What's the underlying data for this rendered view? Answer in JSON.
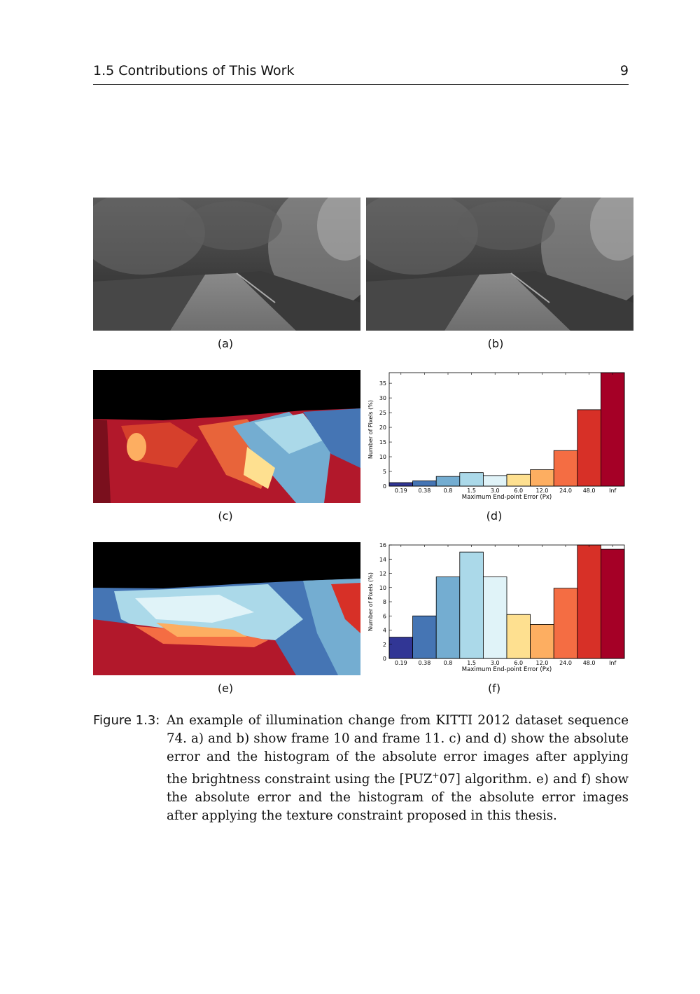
{
  "header": {
    "section": "1.5  Contributions of This Work",
    "page_number": "9"
  },
  "subfigures": {
    "a": "(a)",
    "b": "(b)",
    "c": "(c)",
    "d": "(d)",
    "e": "(e)",
    "f": "(f)"
  },
  "caption": {
    "label": "Figure 1.3:",
    "text_before_sup": "An example of illumination change from KITTI 2012 dataset sequence 74. a) and b) show frame 10 and frame 11. c) and d) show the absolute error and the histogram of the absolute error images after applying the brightness constraint using the [PUZ",
    "sup": "+",
    "text_after_sup": "07] algorithm. e) and f) show the absolute error and the histogram of the absolute error images after applying the texture constraint proposed in this thesis."
  },
  "chart_data": [
    {
      "type": "bar",
      "id": "d",
      "categories": [
        "0.19",
        "0.38",
        "0.8",
        "1.5",
        "3.0",
        "6.0",
        "12.0",
        "24.0",
        "48.0",
        "Inf"
      ],
      "values": [
        1.2,
        1.8,
        3.3,
        4.6,
        3.6,
        4.0,
        5.6,
        12.1,
        26.0,
        38.6
      ],
      "colors": [
        "#313695",
        "#4575b4",
        "#74add1",
        "#abd9e9",
        "#e0f3f8",
        "#fee090",
        "#fdae61",
        "#f46d43",
        "#d73027",
        "#a50026"
      ],
      "xlabel": "Maximum End-point Error (Px)",
      "ylabel": "Number of Pixels (%)",
      "ylim": [
        0,
        38.6
      ],
      "yticks": [
        0,
        5,
        10,
        15,
        20,
        25,
        30,
        35
      ]
    },
    {
      "type": "bar",
      "id": "f",
      "categories": [
        "0.19",
        "0.38",
        "0.8",
        "1.5",
        "3.0",
        "6.0",
        "12.0",
        "24.0",
        "48.0",
        "Inf"
      ],
      "values": [
        3.0,
        6.0,
        11.5,
        15.0,
        11.5,
        6.2,
        4.8,
        9.9,
        16.2,
        15.4
      ],
      "colors": [
        "#313695",
        "#4575b4",
        "#74add1",
        "#abd9e9",
        "#e0f3f8",
        "#fee090",
        "#fdae61",
        "#f46d43",
        "#d73027",
        "#a50026"
      ],
      "xlabel": "Maximum End-point Error (Px)",
      "ylabel": "Number of Pixels (%)",
      "ylim": [
        0,
        16
      ],
      "yticks": [
        0,
        2,
        4,
        6,
        8,
        10,
        12,
        14,
        16
      ]
    }
  ]
}
